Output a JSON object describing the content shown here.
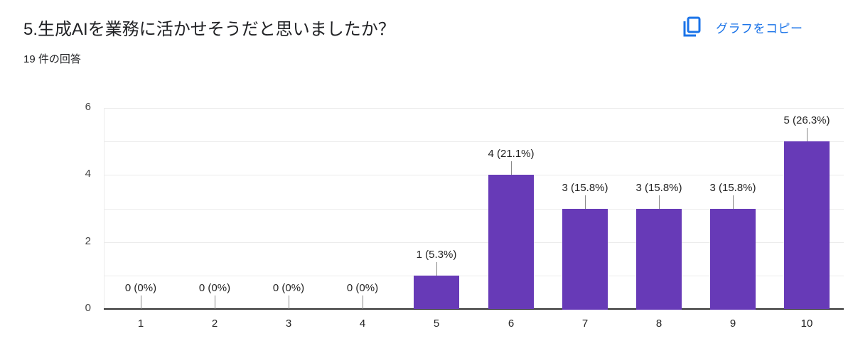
{
  "header": {
    "title": "5.生成AIを業務に活かせそうだと思いましたか？",
    "response_count": "19 件の回答",
    "copy_button": {
      "label": "グラフをコピー",
      "icon": "copy-icon",
      "color": "#1a73e8"
    }
  },
  "chart_data": {
    "type": "bar",
    "title": "5.生成AIを業務に活かせそうだと思いましたか？",
    "subtitle": "19 件の回答",
    "xlabel": "",
    "ylabel": "",
    "categories": [
      "1",
      "2",
      "3",
      "4",
      "5",
      "6",
      "7",
      "8",
      "9",
      "10"
    ],
    "values": [
      0,
      0,
      0,
      0,
      1,
      4,
      3,
      3,
      3,
      5
    ],
    "percentages": [
      "0%",
      "0%",
      "0%",
      "0%",
      "5.3%",
      "21.1%",
      "15.8%",
      "15.8%",
      "15.8%",
      "26.3%"
    ],
    "data_labels": [
      "0 (0%)",
      "0 (0%)",
      "0 (0%)",
      "0 (0%)",
      "1 (5.3%)",
      "4 (21.1%)",
      "3 (15.8%)",
      "3 (15.8%)",
      "3 (15.8%)",
      "5 (26.3%)"
    ],
    "ylim": [
      0,
      6
    ],
    "yticks": [
      "0",
      "2",
      "4",
      "6"
    ],
    "grid": true,
    "legend": null,
    "bar_color": "#673ab7"
  }
}
